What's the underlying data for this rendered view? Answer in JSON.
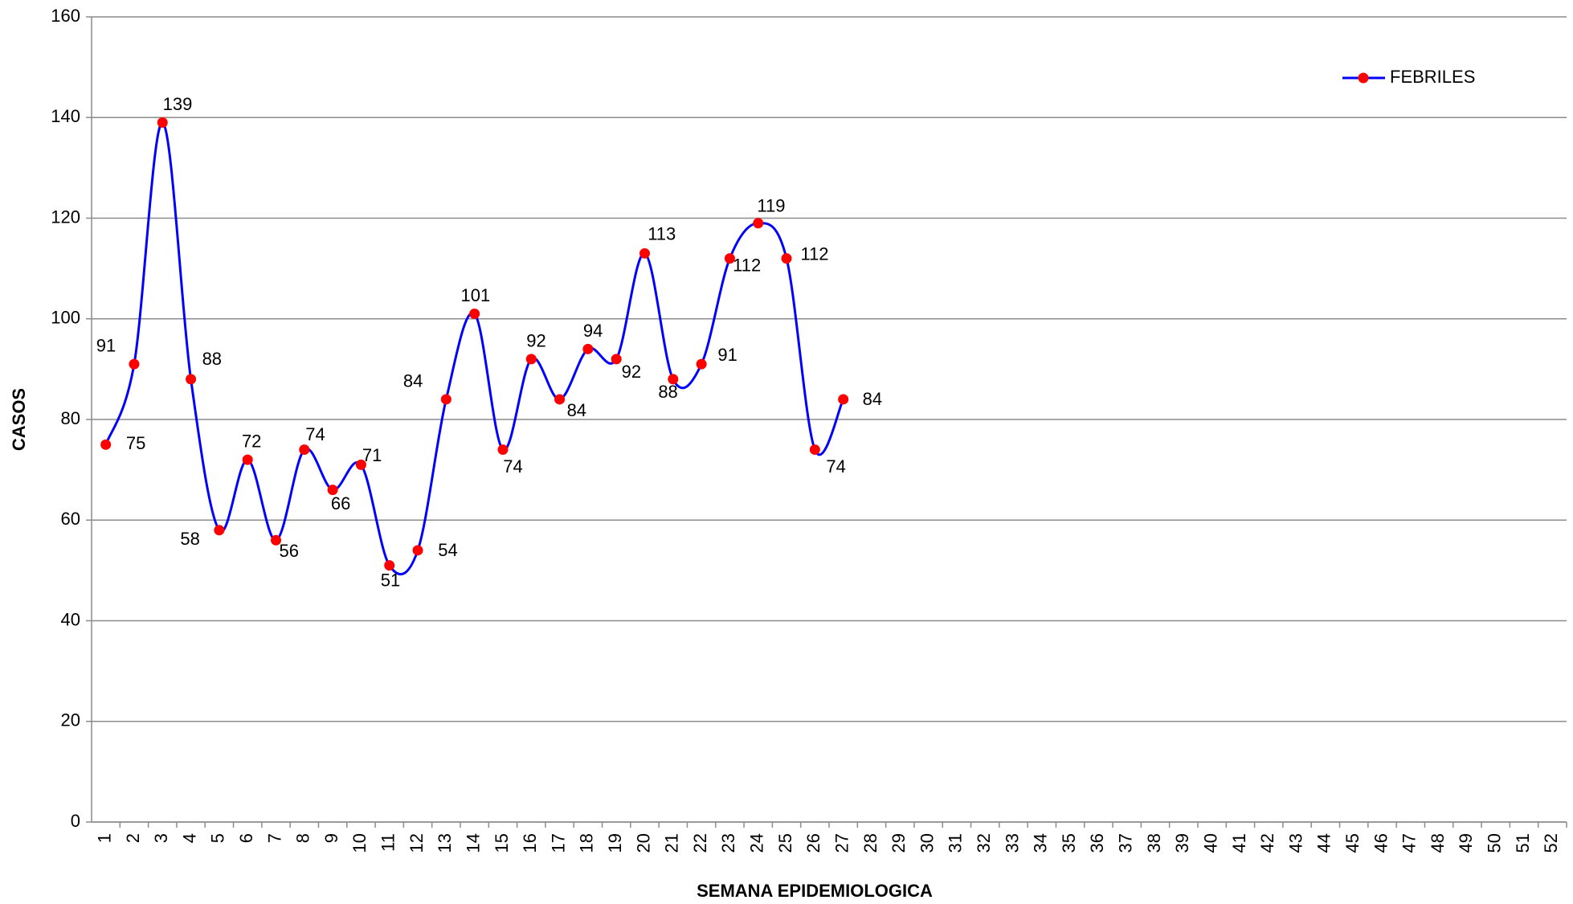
{
  "chart_data": {
    "type": "line",
    "x_label": "SEMANA EPIDEMIOLOGICA",
    "y_label": "CASOS",
    "categories": [
      1,
      2,
      3,
      4,
      5,
      6,
      7,
      8,
      9,
      10,
      11,
      12,
      13,
      14,
      15,
      16,
      17,
      18,
      19,
      20,
      21,
      22,
      23,
      24,
      25,
      26,
      27,
      28,
      29,
      30,
      31,
      32,
      33,
      34,
      35,
      36,
      37,
      38,
      39,
      40,
      41,
      42,
      43,
      44,
      45,
      46,
      47,
      48,
      49,
      50,
      51,
      52
    ],
    "series": [
      {
        "name": "FEBRILES",
        "color": "#0000ff",
        "marker_color": "#ff0000",
        "values": [
          75,
          91,
          139,
          88,
          58,
          72,
          56,
          74,
          66,
          71,
          51,
          54,
          84,
          101,
          74,
          92,
          84,
          94,
          92,
          113,
          88,
          91,
          112,
          119,
          112,
          74,
          84,
          null,
          null,
          null,
          null,
          null,
          null,
          null,
          null,
          null,
          null,
          null,
          null,
          null,
          null,
          null,
          null,
          null,
          null,
          null,
          null,
          null,
          null,
          null,
          null,
          null
        ]
      }
    ],
    "ylim": [
      0,
      160
    ],
    "yticks": [
      0,
      20,
      40,
      60,
      80,
      100,
      120,
      140,
      160
    ],
    "grid": true,
    "smooth": true,
    "legend": "upper right"
  }
}
